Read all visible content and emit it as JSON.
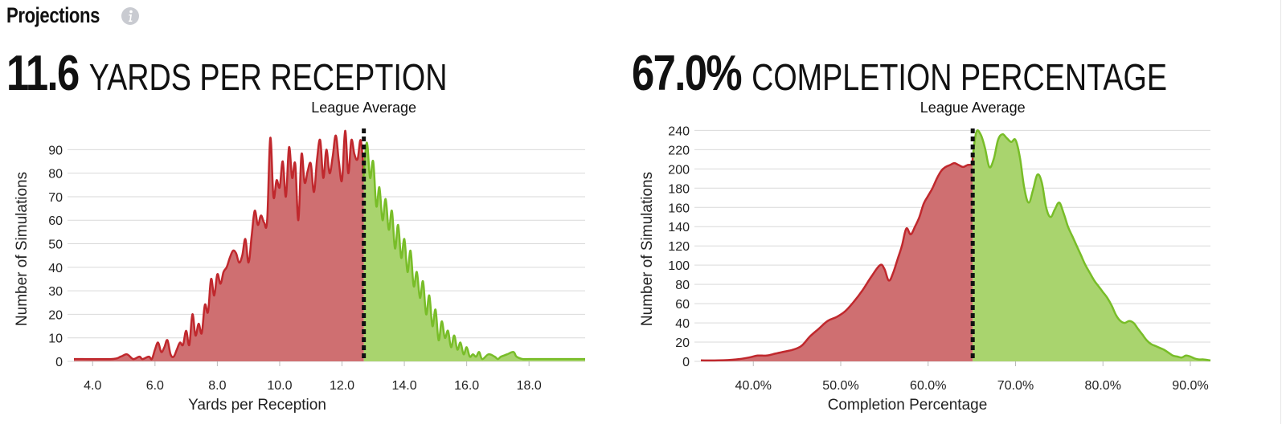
{
  "section": {
    "title": "Projections",
    "info_icon": "info-icon"
  },
  "colors": {
    "below": "#c0282d",
    "below_fill": "#cf6f71",
    "above": "#78bd28",
    "above_fill": "#a9d46e",
    "divider": "#111111",
    "grid": "#d9d9d9"
  },
  "chart_data": [
    {
      "type": "area",
      "value_display": "11.6",
      "stat_label": "YARDS PER RECEPTION",
      "annotation": "League Average",
      "xlabel": "Yards per Reception",
      "ylabel": "Number of Simulations",
      "xlim": [
        3.4,
        19.8
      ],
      "ylim": [
        0,
        99
      ],
      "xticks": [
        4,
        6,
        8,
        10,
        12,
        14,
        16,
        18
      ],
      "xtick_labels": [
        "4.0",
        "6.0",
        "8.0",
        "10.0",
        "12.0",
        "14.0",
        "16.0",
        "18.0"
      ],
      "yticks": [
        0,
        10,
        20,
        30,
        40,
        50,
        60,
        70,
        80,
        90
      ],
      "ytick_labels": [
        "0",
        "10",
        "20",
        "30",
        "40",
        "50",
        "60",
        "70",
        "80",
        "90"
      ],
      "grid": true,
      "divider_x": 12.7,
      "x": [
        3.4,
        4.6,
        4.9,
        5.1,
        5.3,
        5.5,
        5.6,
        5.8,
        5.9,
        6.0,
        6.1,
        6.2,
        6.3,
        6.4,
        6.5,
        6.6,
        6.7,
        6.8,
        6.9,
        7.0,
        7.1,
        7.2,
        7.3,
        7.4,
        7.5,
        7.6,
        7.7,
        7.8,
        7.9,
        8.0,
        8.1,
        8.2,
        8.3,
        8.4,
        8.5,
        8.6,
        8.7,
        8.8,
        8.9,
        9.0,
        9.1,
        9.2,
        9.3,
        9.4,
        9.5,
        9.6,
        9.7,
        9.8,
        9.9,
        10.0,
        10.1,
        10.2,
        10.3,
        10.4,
        10.5,
        10.6,
        10.7,
        10.8,
        10.9,
        11.0,
        11.1,
        11.2,
        11.3,
        11.4,
        11.5,
        11.6,
        11.7,
        11.8,
        11.9,
        12.0,
        12.1,
        12.2,
        12.3,
        12.4,
        12.5,
        12.6,
        12.7,
        12.8,
        12.9,
        13.0,
        13.1,
        13.2,
        13.3,
        13.4,
        13.5,
        13.6,
        13.7,
        13.8,
        13.9,
        14.0,
        14.1,
        14.2,
        14.3,
        14.4,
        14.5,
        14.6,
        14.7,
        14.8,
        14.9,
        15.0,
        15.1,
        15.2,
        15.3,
        15.4,
        15.5,
        15.6,
        15.7,
        15.8,
        15.9,
        16.0,
        16.1,
        16.2,
        16.3,
        16.4,
        16.5,
        16.7,
        16.9,
        17.0,
        17.1,
        17.3,
        17.5,
        17.6,
        17.8,
        18.0,
        18.5,
        19.8
      ],
      "y": [
        1,
        1,
        2,
        3,
        1,
        2,
        1,
        2,
        1,
        5,
        8,
        4,
        6,
        9,
        3,
        2,
        5,
        8,
        7,
        13,
        7,
        20,
        11,
        16,
        12,
        24,
        21,
        35,
        28,
        37,
        33,
        38,
        40,
        44,
        47,
        46,
        42,
        45,
        52,
        42,
        53,
        64,
        58,
        62,
        59,
        60,
        95,
        70,
        77,
        74,
        85,
        70,
        91,
        78,
        84,
        60,
        88,
        76,
        81,
        84,
        72,
        86,
        94,
        78,
        90,
        80,
        87,
        96,
        85,
        77,
        98,
        80,
        94,
        88,
        86,
        94,
        80,
        93,
        78,
        85,
        66,
        74,
        60,
        69,
        56,
        64,
        48,
        58,
        44,
        52,
        38,
        47,
        32,
        38,
        27,
        34,
        20,
        28,
        15,
        22,
        9,
        17,
        10,
        13,
        6,
        11,
        5,
        8,
        3,
        6,
        2,
        3,
        2,
        4,
        1,
        3,
        2,
        1,
        2,
        3,
        4,
        2,
        1,
        1,
        1,
        1
      ]
    },
    {
      "type": "area",
      "value_display": "67.0%",
      "stat_label": "COMPLETION PERCENTAGE",
      "annotation": "League Average",
      "xlabel": "Completion Percentage",
      "ylabel": "Number of Simulations",
      "xlim": [
        34.0,
        92.3
      ],
      "ylim": [
        0,
        242
      ],
      "xticks": [
        40,
        50,
        60,
        70,
        80,
        90
      ],
      "xtick_labels": [
        "40.0%",
        "50.0%",
        "60.0%",
        "70.0%",
        "80.0%",
        "90.0%"
      ],
      "yticks": [
        0,
        20,
        40,
        60,
        80,
        100,
        120,
        140,
        160,
        180,
        200,
        220,
        240
      ],
      "ytick_labels": [
        "0",
        "20",
        "40",
        "60",
        "80",
        "100",
        "120",
        "140",
        "160",
        "180",
        "200",
        "220",
        "240"
      ],
      "grid": true,
      "divider_x": 65.1,
      "x": [
        34.0,
        36.0,
        38.0,
        39.5,
        40.5,
        41.5,
        42.5,
        43.5,
        44.5,
        45.5,
        46.5,
        47.5,
        48.5,
        49.5,
        50.5,
        51.5,
        52.5,
        53.5,
        54.5,
        55.0,
        55.5,
        56.0,
        56.5,
        57.0,
        57.5,
        58.0,
        58.5,
        59.0,
        59.5,
        60.0,
        60.5,
        61.0,
        61.5,
        62.0,
        62.5,
        63.0,
        63.5,
        64.0,
        64.5,
        65.0,
        65.5,
        66.0,
        66.5,
        67.0,
        67.5,
        68.0,
        68.5,
        69.0,
        69.5,
        70.0,
        70.5,
        71.0,
        71.5,
        72.0,
        72.5,
        73.0,
        73.5,
        74.0,
        74.5,
        75.0,
        75.5,
        76.0,
        76.5,
        77.0,
        77.5,
        78.0,
        78.5,
        79.0,
        79.5,
        80.0,
        80.5,
        81.0,
        81.5,
        82.0,
        82.5,
        83.0,
        83.5,
        84.0,
        84.5,
        85.0,
        85.5,
        86.0,
        86.5,
        87.0,
        87.5,
        88.0,
        88.5,
        89.0,
        89.5,
        90.0,
        90.5,
        91.0,
        91.5,
        92.3
      ],
      "y": [
        1,
        1,
        2,
        4,
        6,
        6,
        8,
        10,
        12,
        16,
        26,
        34,
        42,
        46,
        52,
        62,
        74,
        88,
        100,
        96,
        84,
        92,
        106,
        120,
        138,
        132,
        140,
        150,
        164,
        172,
        180,
        190,
        198,
        202,
        204,
        206,
        204,
        202,
        204,
        205,
        238,
        236,
        222,
        202,
        210,
        230,
        236,
        232,
        228,
        230,
        212,
        180,
        165,
        178,
        194,
        186,
        160,
        150,
        158,
        165,
        154,
        140,
        130,
        120,
        110,
        100,
        92,
        84,
        78,
        72,
        66,
        58,
        48,
        42,
        40,
        42,
        40,
        34,
        28,
        22,
        18,
        16,
        14,
        12,
        9,
        6,
        5,
        4,
        6,
        5,
        3,
        2,
        2,
        1
      ]
    }
  ]
}
